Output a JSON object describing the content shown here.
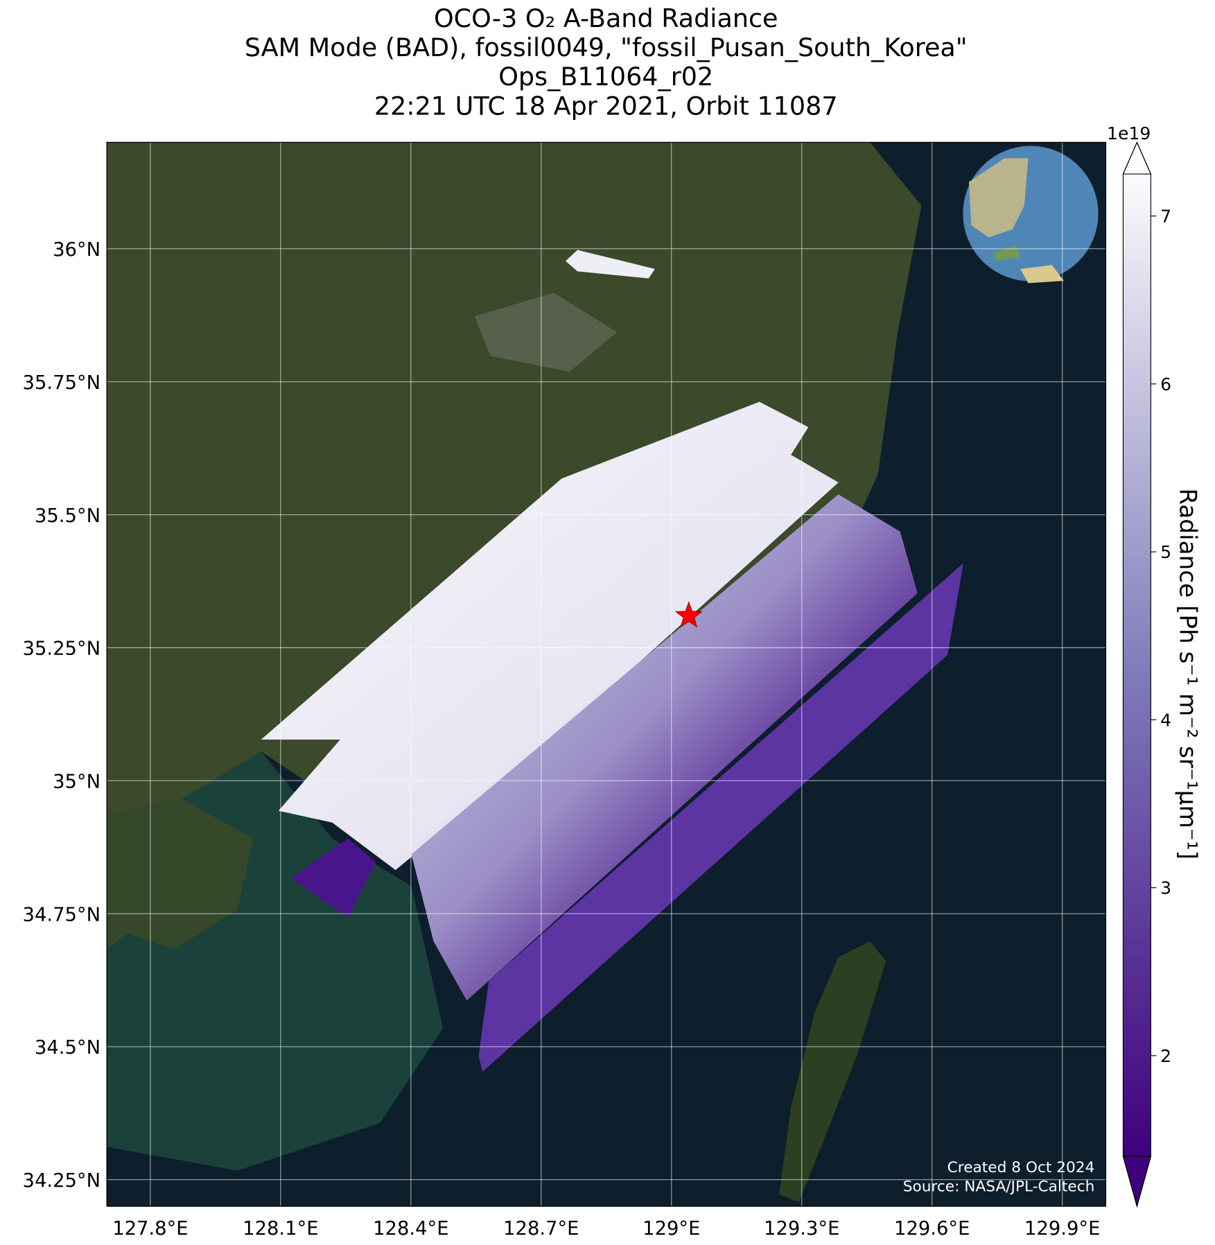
{
  "chart_data": {
    "type": "map",
    "title": [
      "OCO-3 O₂ A-Band Radiance",
      "SAM Mode (BAD), fossil0049, \"fossil_Pusan_South_Korea\"",
      "Ops_B11064_r02",
      "22:21 UTC 18 Apr 2021, Orbit 11087"
    ],
    "xlim": [
      127.7,
      130.0
    ],
    "ylim": [
      34.2,
      36.2
    ],
    "xticks": [
      {
        "value": 127.8,
        "label": "127.8°E"
      },
      {
        "value": 128.1,
        "label": "128.1°E"
      },
      {
        "value": 128.4,
        "label": "128.4°E"
      },
      {
        "value": 128.7,
        "label": "128.7°E"
      },
      {
        "value": 129.0,
        "label": "129°E"
      },
      {
        "value": 129.3,
        "label": "129.3°E"
      },
      {
        "value": 129.6,
        "label": "129.6°E"
      },
      {
        "value": 129.9,
        "label": "129.9°E"
      }
    ],
    "yticks": [
      {
        "value": 34.25,
        "label": "34.25°N"
      },
      {
        "value": 34.5,
        "label": "34.5°N"
      },
      {
        "value": 34.75,
        "label": "34.75°N"
      },
      {
        "value": 35.0,
        "label": "35°N"
      },
      {
        "value": 35.25,
        "label": "35.25°N"
      },
      {
        "value": 35.5,
        "label": "35.5°N"
      },
      {
        "value": 35.75,
        "label": "35.75°N"
      },
      {
        "value": 36.0,
        "label": "36°N"
      }
    ],
    "grid": true,
    "target": {
      "lon": 129.04,
      "lat": 35.31,
      "color": "#ff0000"
    },
    "colorbar": {
      "label": "Radiance [Ph s⁻¹ m⁻² sr⁻¹μm⁻¹]",
      "scale_label": "1e19",
      "lim": [
        1.4,
        7.25
      ],
      "ticks": [
        2,
        3,
        4,
        5,
        6,
        7
      ],
      "colors": [
        "#3f007d",
        "#fcfbfd"
      ]
    },
    "annotations": [
      "Created 8 Oct 2024",
      "Source: NASA/JPL-Caltech"
    ]
  }
}
